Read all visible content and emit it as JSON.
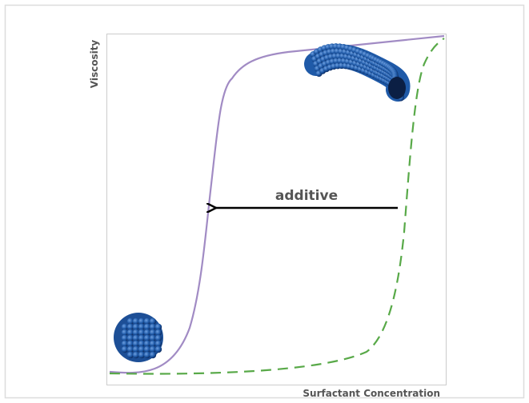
{
  "axes": {
    "y_label": "Viscosity",
    "x_label": "Surfactant Concentration"
  },
  "annotation": "additive"
}
